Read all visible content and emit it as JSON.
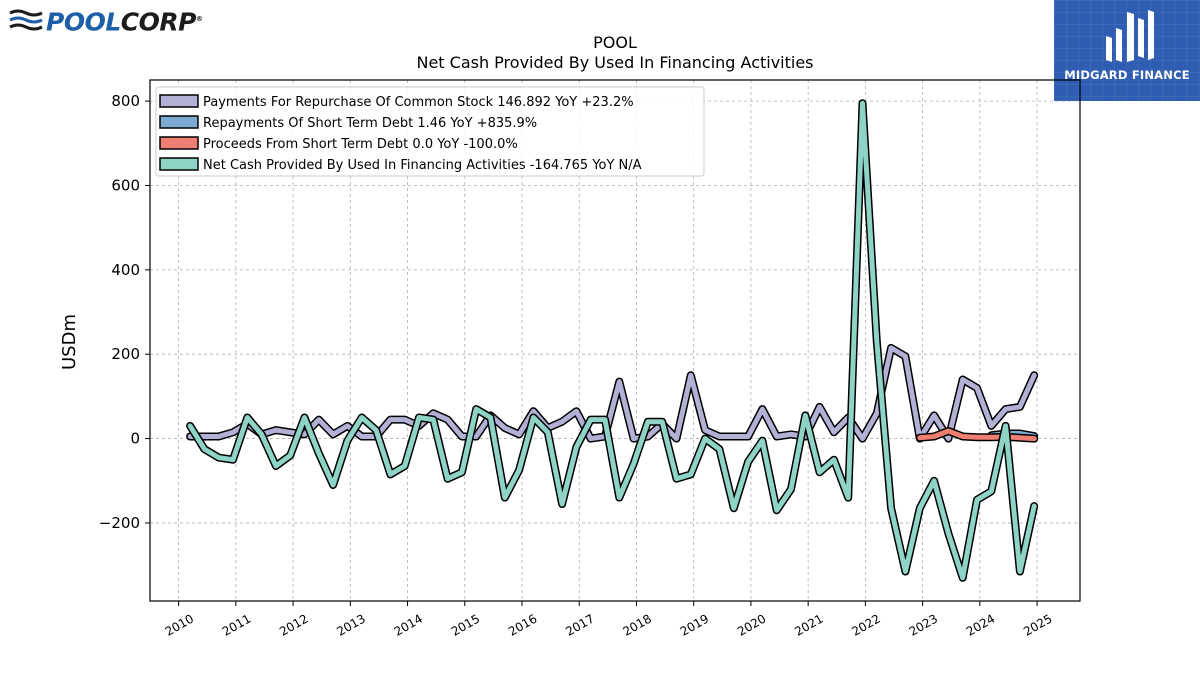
{
  "branding": {
    "logo_part1": "POOL",
    "logo_part2": "CORP",
    "logo_reg": "®",
    "badge_text": "MIDGARD FINANCE",
    "badge_color": "#2f5db2"
  },
  "chart_data": {
    "type": "line",
    "title": "POOL",
    "subtitle": "Net Cash Provided By Used In Financing Activities",
    "ylabel": "USDm",
    "xlabel": "",
    "xlim": [
      2009.5,
      2025.75
    ],
    "ylim": [
      -385,
      850
    ],
    "yticks": [
      -200,
      0,
      200,
      400,
      600,
      800
    ],
    "ytick_labels": [
      "−200",
      "0",
      "200",
      "400",
      "600",
      "800"
    ],
    "xticks": [
      2010,
      2011,
      2012,
      2013,
      2014,
      2015,
      2016,
      2017,
      2018,
      2019,
      2020,
      2021,
      2022,
      2023,
      2024,
      2025
    ],
    "xtick_labels": [
      "2010",
      "2011",
      "2012",
      "2013",
      "2014",
      "2015",
      "2016",
      "2017",
      "2018",
      "2019",
      "2020",
      "2021",
      "2022",
      "2023",
      "2024",
      "2025"
    ],
    "grid": true,
    "legend_position": "top-left",
    "series": [
      {
        "name": "Payments For Repurchase Of Common Stock",
        "legend_label": "Payments For Repurchase Of Common Stock  146.892 YoY +23.2%",
        "color": "#b3b0d6",
        "points": [
          [
            2010.2,
            5
          ],
          [
            2010.45,
            5
          ],
          [
            2010.7,
            5
          ],
          [
            2010.95,
            15
          ],
          [
            2011.2,
            35
          ],
          [
            2011.45,
            10
          ],
          [
            2011.7,
            20
          ],
          [
            2011.95,
            15
          ],
          [
            2012.2,
            10
          ],
          [
            2012.45,
            45
          ],
          [
            2012.7,
            10
          ],
          [
            2012.95,
            30
          ],
          [
            2013.2,
            5
          ],
          [
            2013.45,
            5
          ],
          [
            2013.7,
            45
          ],
          [
            2013.95,
            45
          ],
          [
            2014.2,
            30
          ],
          [
            2014.45,
            60
          ],
          [
            2014.7,
            45
          ],
          [
            2014.95,
            5
          ],
          [
            2015.2,
            5
          ],
          [
            2015.45,
            55
          ],
          [
            2015.7,
            25
          ],
          [
            2015.95,
            10
          ],
          [
            2016.2,
            65
          ],
          [
            2016.45,
            25
          ],
          [
            2016.7,
            40
          ],
          [
            2016.95,
            65
          ],
          [
            2017.2,
            0
          ],
          [
            2017.45,
            5
          ],
          [
            2017.7,
            135
          ],
          [
            2017.95,
            0
          ],
          [
            2018.2,
            5
          ],
          [
            2018.45,
            35
          ],
          [
            2018.7,
            0
          ],
          [
            2018.95,
            150
          ],
          [
            2019.2,
            20
          ],
          [
            2019.45,
            5
          ],
          [
            2019.7,
            5
          ],
          [
            2019.95,
            5
          ],
          [
            2020.2,
            70
          ],
          [
            2020.45,
            5
          ],
          [
            2020.7,
            10
          ],
          [
            2020.95,
            5
          ],
          [
            2021.2,
            75
          ],
          [
            2021.45,
            15
          ],
          [
            2021.7,
            50
          ],
          [
            2021.95,
            0
          ],
          [
            2022.2,
            60
          ],
          [
            2022.45,
            215
          ],
          [
            2022.7,
            195
          ],
          [
            2022.95,
            0
          ],
          [
            2023.2,
            55
          ],
          [
            2023.45,
            0
          ],
          [
            2023.7,
            140
          ],
          [
            2023.95,
            120
          ],
          [
            2024.2,
            30
          ],
          [
            2024.45,
            70
          ],
          [
            2024.7,
            75
          ],
          [
            2024.95,
            150
          ]
        ]
      },
      {
        "name": "Repayments Of Short Term Debt",
        "legend_label": "Repayments Of Short Term Debt  1.46 YoY +835.9%",
        "color": "#7ba9d0",
        "points": [
          [
            2024.2,
            8
          ],
          [
            2024.45,
            12
          ],
          [
            2024.7,
            12
          ],
          [
            2024.95,
            6
          ]
        ]
      },
      {
        "name": "Proceeds From Short Term Debt",
        "legend_label": "Proceeds From Short Term Debt  0.0 YoY -100.0%",
        "color": "#f07f73",
        "points": [
          [
            2022.95,
            2
          ],
          [
            2023.2,
            5
          ],
          [
            2023.45,
            18
          ],
          [
            2023.7,
            5
          ],
          [
            2023.95,
            3
          ],
          [
            2024.2,
            3
          ],
          [
            2024.45,
            4
          ],
          [
            2024.7,
            2
          ],
          [
            2024.95,
            0
          ]
        ]
      },
      {
        "name": "Net Cash Provided By Used In Financing Activities",
        "legend_label": "Net Cash Provided By Used In Financing Activities  -164.765 YoY N/A",
        "color": "#8dd3c6",
        "points": [
          [
            2010.2,
            30
          ],
          [
            2010.45,
            -25
          ],
          [
            2010.7,
            -45
          ],
          [
            2010.95,
            -50
          ],
          [
            2011.2,
            50
          ],
          [
            2011.45,
            10
          ],
          [
            2011.7,
            -65
          ],
          [
            2011.95,
            -40
          ],
          [
            2012.2,
            50
          ],
          [
            2012.45,
            -35
          ],
          [
            2012.7,
            -110
          ],
          [
            2012.95,
            -5
          ],
          [
            2013.2,
            50
          ],
          [
            2013.45,
            20
          ],
          [
            2013.7,
            -85
          ],
          [
            2013.95,
            -65
          ],
          [
            2014.2,
            50
          ],
          [
            2014.45,
            45
          ],
          [
            2014.7,
            -95
          ],
          [
            2014.95,
            -80
          ],
          [
            2015.2,
            70
          ],
          [
            2015.45,
            50
          ],
          [
            2015.7,
            -140
          ],
          [
            2015.95,
            -75
          ],
          [
            2016.2,
            50
          ],
          [
            2016.45,
            15
          ],
          [
            2016.7,
            -155
          ],
          [
            2016.95,
            -20
          ],
          [
            2017.2,
            45
          ],
          [
            2017.45,
            45
          ],
          [
            2017.7,
            -140
          ],
          [
            2017.95,
            -60
          ],
          [
            2018.2,
            40
          ],
          [
            2018.45,
            40
          ],
          [
            2018.7,
            -95
          ],
          [
            2018.95,
            -85
          ],
          [
            2019.2,
            0
          ],
          [
            2019.45,
            -25
          ],
          [
            2019.7,
            -165
          ],
          [
            2019.95,
            -55
          ],
          [
            2020.2,
            -5
          ],
          [
            2020.45,
            -170
          ],
          [
            2020.7,
            -120
          ],
          [
            2020.95,
            55
          ],
          [
            2021.2,
            -80
          ],
          [
            2021.45,
            -50
          ],
          [
            2021.7,
            -140
          ],
          [
            2021.95,
            795
          ],
          [
            2022.2,
            230
          ],
          [
            2022.45,
            -165
          ],
          [
            2022.7,
            -315
          ],
          [
            2022.95,
            -165
          ],
          [
            2023.2,
            -100
          ],
          [
            2023.45,
            -225
          ],
          [
            2023.7,
            -330
          ],
          [
            2023.95,
            -145
          ],
          [
            2024.2,
            -125
          ],
          [
            2024.45,
            30
          ],
          [
            2024.7,
            -315
          ],
          [
            2024.95,
            -160
          ]
        ]
      }
    ]
  }
}
